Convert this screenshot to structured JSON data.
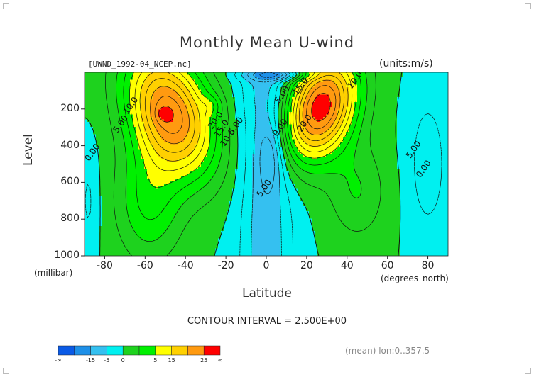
{
  "chart_data": {
    "type": "contour",
    "title": "Monthly Mean U-wind",
    "file_label": "[UWND_1992-04_NCEP.nc]",
    "units_label": "(units:m/s)",
    "xlabel": "Latitude",
    "xunit": "(degrees_north)",
    "ylabel": "Level",
    "yunit": "(millibar)",
    "xlim": [
      -90,
      90
    ],
    "ylim": [
      1000,
      0
    ],
    "x_ticks": [
      {
        "value": -80,
        "label": "-80"
      },
      {
        "value": -60,
        "label": "-60"
      },
      {
        "value": -40,
        "label": "-40"
      },
      {
        "value": -20,
        "label": "-20"
      },
      {
        "value": 0,
        "label": "0"
      },
      {
        "value": 20,
        "label": "20"
      },
      {
        "value": 40,
        "label": "40"
      },
      {
        "value": 60,
        "label": "60"
      },
      {
        "value": 80,
        "label": "80"
      }
    ],
    "y_ticks": [
      {
        "value": 200,
        "label": "200"
      },
      {
        "value": 400,
        "label": "400"
      },
      {
        "value": 600,
        "label": "600"
      },
      {
        "value": 800,
        "label": "800"
      },
      {
        "value": 1000,
        "label": "1000"
      }
    ],
    "contour_interval_label": "CONTOUR INTERVAL = 2.500E+00",
    "mean_label": "(mean) lon:0..357.5",
    "colorbar": {
      "colors": [
        "#0a5ae6",
        "#1e90e8",
        "#35c0f0",
        "#00f0f0",
        "#1ed21e",
        "#00f000",
        "#ffff00",
        "#ffd000",
        "#ff9a10",
        "#ff0000"
      ],
      "labels": [
        "-∞",
        "-15",
        "-5",
        "0",
        "5",
        "15",
        "25",
        "∞"
      ]
    },
    "contour_labels": [
      {
        "text": "10.0",
        "x": -66,
        "y": 190
      },
      {
        "text": "5.00",
        "x": -71,
        "y": 290
      },
      {
        "text": "0.00",
        "x": -85,
        "y": 445
      },
      {
        "text": "20.0",
        "x": -24,
        "y": 270
      },
      {
        "text": "15.0",
        "x": -21,
        "y": 315
      },
      {
        "text": "10.0",
        "x": -18,
        "y": 365
      },
      {
        "text": "5.00",
        "x": -14,
        "y": 300
      },
      {
        "text": "5.00",
        "x": 9,
        "y": 130
      },
      {
        "text": "15.0",
        "x": 18,
        "y": 85
      },
      {
        "text": "10.0",
        "x": 45,
        "y": 50
      },
      {
        "text": "0.00",
        "x": 8,
        "y": 310
      },
      {
        "text": "20.0",
        "x": 20,
        "y": 285
      },
      {
        "text": "5.00",
        "x": 0,
        "y": 640
      },
      {
        "text": "5.00",
        "x": 74,
        "y": 430
      },
      {
        "text": "0.00",
        "x": 79,
        "y": 535
      }
    ]
  }
}
